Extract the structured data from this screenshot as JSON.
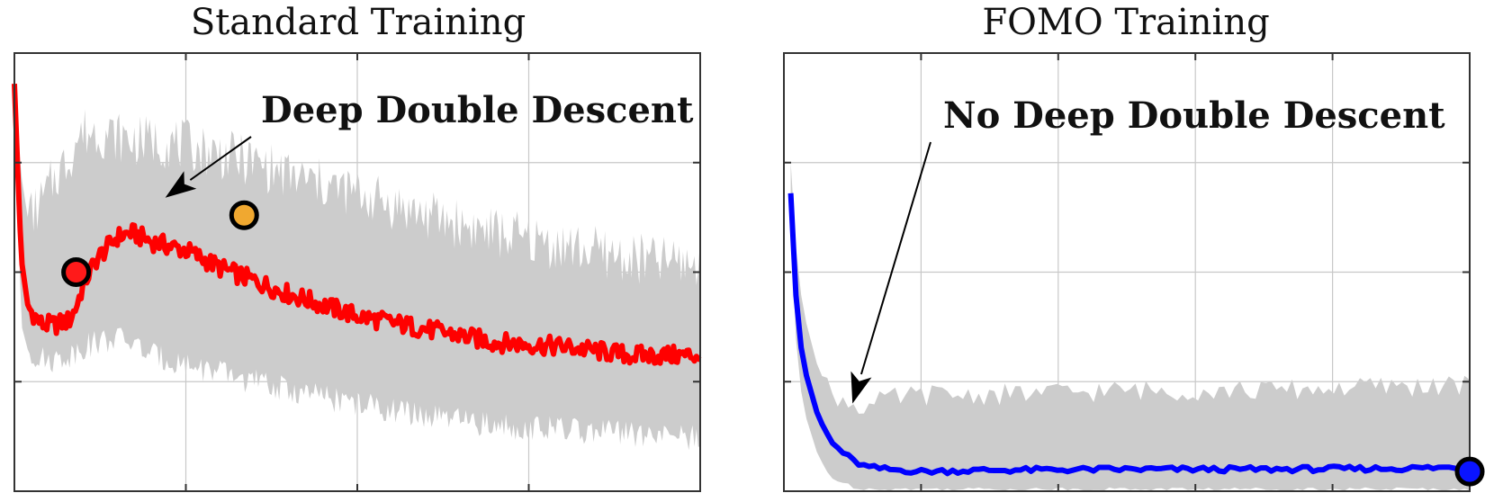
{
  "colors": {
    "band": "#cccccc",
    "std_line": "#ff0000",
    "fomo_line": "#0000ff",
    "marker_red": "#ff1a1a",
    "marker_orange": "#f0a830",
    "marker_blue": "#0a14ff",
    "axis": "#333333",
    "grid": "#c8c8c8"
  },
  "chart_data": [
    {
      "type": "line",
      "title": "Standard Training",
      "xlabel": "",
      "ylabel": "",
      "xlim": [
        0,
        1
      ],
      "ylim": [
        0,
        1
      ],
      "grid": true,
      "x": [
        0.0,
        0.01,
        0.02,
        0.04,
        0.06,
        0.08,
        0.09,
        0.1,
        0.12,
        0.15,
        0.17,
        0.2,
        0.25,
        0.3,
        0.35,
        0.4,
        0.5,
        0.6,
        0.7,
        0.8,
        0.9,
        1.0
      ],
      "series": [
        {
          "values": [
            0.93,
            0.53,
            0.42,
            0.38,
            0.38,
            0.39,
            0.42,
            0.47,
            0.53,
            0.58,
            0.59,
            0.57,
            0.55,
            0.51,
            0.48,
            0.45,
            0.4,
            0.37,
            0.34,
            0.33,
            0.31,
            0.31
          ],
          "upper": [
            0.93,
            0.72,
            0.62,
            0.66,
            0.72,
            0.76,
            0.8,
            0.82,
            0.82,
            0.81,
            0.8,
            0.8,
            0.79,
            0.77,
            0.75,
            0.72,
            0.68,
            0.63,
            0.59,
            0.56,
            0.53,
            0.52
          ],
          "lower": [
            0.93,
            0.38,
            0.32,
            0.3,
            0.3,
            0.31,
            0.32,
            0.33,
            0.34,
            0.35,
            0.34,
            0.31,
            0.29,
            0.27,
            0.25,
            0.23,
            0.2,
            0.17,
            0.15,
            0.14,
            0.13,
            0.12
          ]
        }
      ],
      "annotations": [
        {
          "text": "Deep Double Descent",
          "points_to": [
            0.22,
            0.67
          ]
        }
      ],
      "markers": [
        {
          "x": 0.09,
          "y": 0.5,
          "color": "red"
        },
        {
          "x": 0.335,
          "y": 0.63,
          "color": "orange"
        }
      ]
    },
    {
      "type": "line",
      "title": "FOMO Training",
      "xlabel": "",
      "ylabel": "",
      "xlim": [
        0,
        1
      ],
      "ylim": [
        0,
        1
      ],
      "grid": true,
      "x": [
        0.01,
        0.015,
        0.02,
        0.03,
        0.05,
        0.07,
        0.1,
        0.12,
        0.15,
        0.2,
        0.3,
        0.5,
        0.7,
        0.9,
        1.0
      ],
      "series": [
        {
          "values": [
            0.68,
            0.52,
            0.38,
            0.28,
            0.17,
            0.11,
            0.07,
            0.055,
            0.05,
            0.045,
            0.048,
            0.05,
            0.05,
            0.052,
            0.055
          ],
          "upper": [
            0.75,
            0.62,
            0.5,
            0.4,
            0.28,
            0.22,
            0.2,
            0.19,
            0.21,
            0.22,
            0.22,
            0.23,
            0.23,
            0.24,
            0.24
          ],
          "lower": [
            0.62,
            0.42,
            0.28,
            0.18,
            0.08,
            0.03,
            0.01,
            0.005,
            0.005,
            0.005,
            0.005,
            0.005,
            0.005,
            0.005,
            0.005
          ]
        }
      ],
      "annotations": [
        {
          "text": "No Deep Double Descent",
          "points_to": [
            0.1,
            0.2
          ]
        }
      ],
      "markers": [
        {
          "x": 1.0,
          "y": 0.045,
          "color": "blue"
        }
      ]
    }
  ]
}
